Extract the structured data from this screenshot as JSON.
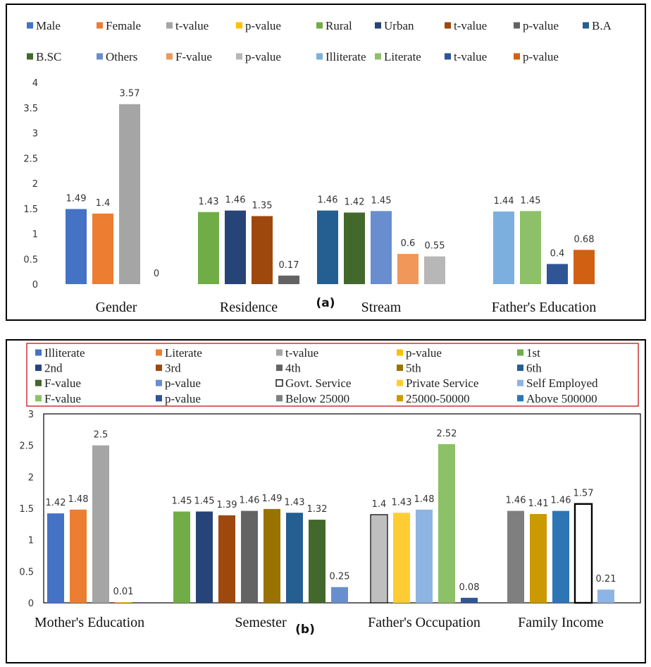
{
  "chart_data": [
    {
      "panel_label": "(a)",
      "type": "bar",
      "ylim": [
        0,
        4
      ],
      "yticks": [
        "0",
        "0.5",
        "1",
        "1.5",
        "2",
        "2.5",
        "3",
        "3.5",
        "4"
      ],
      "legend": [
        {
          "name": "Male",
          "color": "#4472C4"
        },
        {
          "name": "Female",
          "color": "#ED7D31"
        },
        {
          "name": "t-value",
          "color": "#A5A5A5"
        },
        {
          "name": "p-value",
          "color": "#FFC000"
        },
        {
          "name": "Rural",
          "color": "#70AD47"
        },
        {
          "name": "Urban",
          "color": "#264478"
        },
        {
          "name": "t-value",
          "color": "#9E480E"
        },
        {
          "name": "p-value",
          "color": "#636363"
        },
        {
          "name": "B.A",
          "color": "#255E91"
        },
        {
          "name": "B.SC",
          "color": "#43682B"
        },
        {
          "name": "Others",
          "color": "#698ED0"
        },
        {
          "name": "F-value",
          "color": "#F1975A"
        },
        {
          "name": "p-value",
          "color": "#B7B7B7"
        },
        {
          "name": "Illiterate",
          "color": "#7CAFDD"
        },
        {
          "name": "Literate",
          "color": "#8CC168"
        },
        {
          "name": "t-value",
          "color": "#2F5597"
        },
        {
          "name": "p-value",
          "color": "#D26012"
        }
      ],
      "groups": [
        {
          "category": "Gender",
          "bars": [
            {
              "value": 1.49,
              "label": "1.49",
              "color": "#4472C4"
            },
            {
              "value": 1.4,
              "label": "1.4",
              "color": "#ED7D31"
            },
            {
              "value": 3.57,
              "label": "3.57",
              "color": "#A5A5A5"
            },
            {
              "value": 0,
              "label": "0",
              "color": "#FFC000"
            }
          ]
        },
        {
          "category": "Residence",
          "bars": [
            {
              "value": 1.43,
              "label": "1.43",
              "color": "#70AD47"
            },
            {
              "value": 1.46,
              "label": "1.46",
              "color": "#264478"
            },
            {
              "value": 1.35,
              "label": "1.35",
              "color": "#9E480E"
            },
            {
              "value": 0.17,
              "label": "0.17",
              "color": "#636363"
            }
          ]
        },
        {
          "category": "Stream",
          "bars": [
            {
              "value": 1.46,
              "label": "1.46",
              "color": "#255E91"
            },
            {
              "value": 1.42,
              "label": "1.42",
              "color": "#43682B"
            },
            {
              "value": 1.45,
              "label": "1.45",
              "color": "#698ED0"
            },
            {
              "value": 0.6,
              "label": "0.6",
              "color": "#F1975A"
            },
            {
              "value": 0.55,
              "label": "0.55",
              "color": "#B7B7B7"
            }
          ]
        },
        {
          "category": "Father's Education",
          "bars": [
            {
              "value": 1.44,
              "label": "1.44",
              "color": "#7CAFDD"
            },
            {
              "value": 1.45,
              "label": "1.45",
              "color": "#8CC168"
            },
            {
              "value": 0.4,
              "label": "0.4",
              "color": "#2F5597"
            },
            {
              "value": 0.68,
              "label": "0.68",
              "color": "#D26012"
            }
          ]
        }
      ]
    },
    {
      "panel_label": "(b)",
      "type": "bar",
      "ylim": [
        0,
        3
      ],
      "yticks": [
        "0",
        "0.5",
        "1",
        "1.5",
        "2",
        "2.5",
        "3"
      ],
      "legend": [
        {
          "name": "Illiterate",
          "color": "#4472C4"
        },
        {
          "name": "Literate",
          "color": "#ED7D31"
        },
        {
          "name": "t-value",
          "color": "#A5A5A5"
        },
        {
          "name": "p-value",
          "color": "#FFC000"
        },
        {
          "name": "1st",
          "color": "#70AD47"
        },
        {
          "name": "2nd",
          "color": "#264478"
        },
        {
          "name": "3rd",
          "color": "#9E480E"
        },
        {
          "name": "4th",
          "color": "#636363"
        },
        {
          "name": "5th",
          "color": "#997300"
        },
        {
          "name": "6th",
          "color": "#255E91"
        },
        {
          "name": "F-value",
          "color": "#43682B"
        },
        {
          "name": "p-value",
          "color": "#698ED0"
        },
        {
          "name": "Govt. Service",
          "color": "#BFBFBF"
        },
        {
          "name": "Private Service",
          "color": "#FFCD33"
        },
        {
          "name": "Self Employed",
          "color": "#8EB4E3"
        },
        {
          "name": "F-value",
          "color": "#8CC168"
        },
        {
          "name": "p-value",
          "color": "#2F5597"
        },
        {
          "name": "Below 25000",
          "color": "#7F7F7F"
        },
        {
          "name": "25000-50000",
          "color": "#CC9900"
        },
        {
          "name": "Above 500000",
          "color": "#2E75B6"
        }
      ],
      "groups": [
        {
          "category": "Mother's Education",
          "bars": [
            {
              "value": 1.42,
              "label": "1.42",
              "color": "#4472C4"
            },
            {
              "value": 1.48,
              "label": "1.48",
              "color": "#ED7D31"
            },
            {
              "value": 2.5,
              "label": "2.5",
              "color": "#A5A5A5"
            },
            {
              "value": 0.01,
              "label": "0.01",
              "color": "#FFC000"
            }
          ]
        },
        {
          "category": "Semester",
          "bars": [
            {
              "value": 1.45,
              "label": "1.45",
              "color": "#70AD47"
            },
            {
              "value": 1.45,
              "label": "1.45",
              "color": "#264478"
            },
            {
              "value": 1.39,
              "label": "1.39",
              "color": "#9E480E"
            },
            {
              "value": 1.46,
              "label": "1.46",
              "color": "#636363"
            },
            {
              "value": 1.49,
              "label": "1.49",
              "color": "#997300"
            },
            {
              "value": 1.43,
              "label": "1.43",
              "color": "#255E91"
            },
            {
              "value": 1.32,
              "label": "1.32",
              "color": "#43682B"
            },
            {
              "value": 0.25,
              "label": "0.25",
              "color": "#698ED0"
            }
          ]
        },
        {
          "category": "Father's Occupation",
          "bars": [
            {
              "value": 1.4,
              "label": "1.4",
              "color": "#BFBFBF"
            },
            {
              "value": 1.43,
              "label": "1.43",
              "color": "#FFCD33"
            },
            {
              "value": 1.48,
              "label": "1.48",
              "color": "#8EB4E3"
            },
            {
              "value": 2.52,
              "label": "2.52",
              "color": "#8CC168"
            },
            {
              "value": 0.08,
              "label": "0.08",
              "color": "#2F5597"
            }
          ]
        },
        {
          "category": "Family Income",
          "bars": [
            {
              "value": 1.46,
              "label": "1.46",
              "color": "#7F7F7F"
            },
            {
              "value": 1.41,
              "label": "1.41",
              "color": "#CC9900"
            },
            {
              "value": 1.46,
              "label": "1.46",
              "color": "#2E75B6"
            },
            {
              "value": 1.57,
              "label": "1.57",
              "color": "#FFFFFF",
              "outlined": true
            },
            {
              "value": 0.21,
              "label": "0.21",
              "color": "#8EB4E3"
            }
          ]
        }
      ]
    }
  ]
}
